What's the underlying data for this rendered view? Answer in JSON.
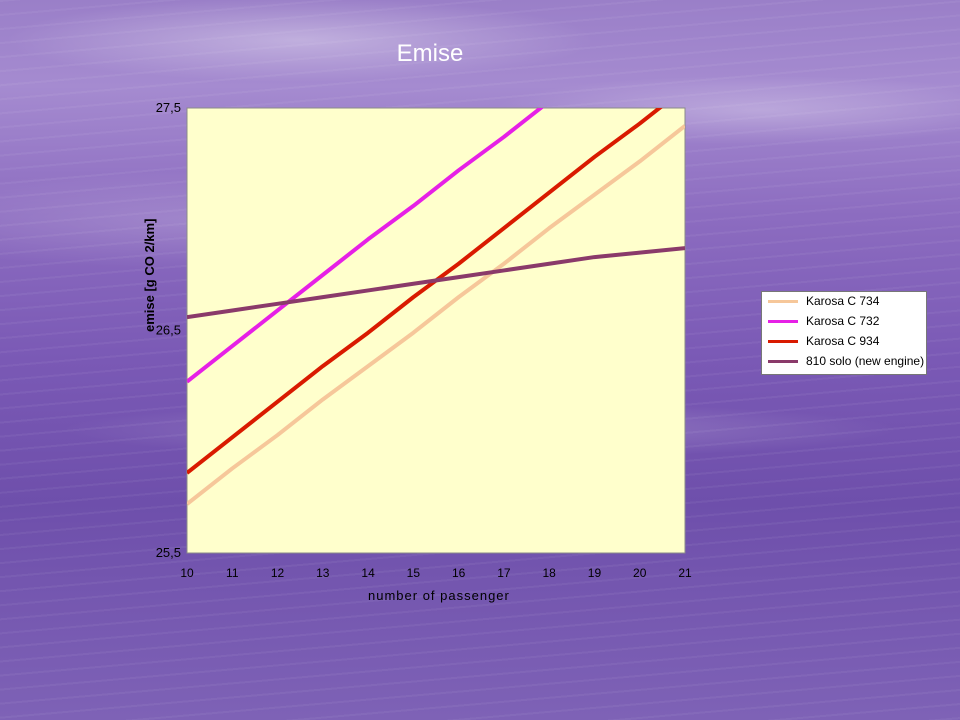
{
  "slide": {
    "title": "Emise"
  },
  "chart_data": {
    "type": "line",
    "title": "",
    "xlabel": "number of passenger",
    "ylabel": "emise [g CO 2/km]",
    "x": [
      10,
      11,
      12,
      13,
      14,
      15,
      16,
      17,
      18,
      19,
      20,
      21
    ],
    "xlim": [
      10,
      21
    ],
    "ylim": [
      25.5,
      27.5
    ],
    "yticks": [
      "25,5",
      "26,5",
      "27,5"
    ],
    "grid": false,
    "legend_position": "right",
    "series": [
      {
        "name": "Karosa C 734",
        "color": "#f6c79a",
        "values": [
          25.72,
          25.88,
          26.03,
          26.19,
          26.34,
          26.49,
          26.65,
          26.8,
          26.96,
          27.11,
          27.26,
          27.42
        ]
      },
      {
        "name": "Karosa C 732",
        "color": "#e620e6",
        "values": [
          26.27,
          26.43,
          26.59,
          26.75,
          26.91,
          27.06,
          27.22,
          27.37,
          27.53,
          27.69,
          27.85,
          28.01
        ]
      },
      {
        "name": "Karosa C 934",
        "color": "#d91a00",
        "values": [
          25.86,
          26.02,
          26.18,
          26.34,
          26.49,
          26.65,
          26.8,
          26.96,
          27.12,
          27.28,
          27.43,
          27.59
        ]
      },
      {
        "name": "810 solo (new engine)",
        "color": "#8a3a6a",
        "values": [
          26.56,
          26.59,
          26.62,
          26.65,
          26.68,
          26.71,
          26.74,
          26.77,
          26.8,
          26.83,
          26.85,
          26.87
        ]
      }
    ]
  }
}
